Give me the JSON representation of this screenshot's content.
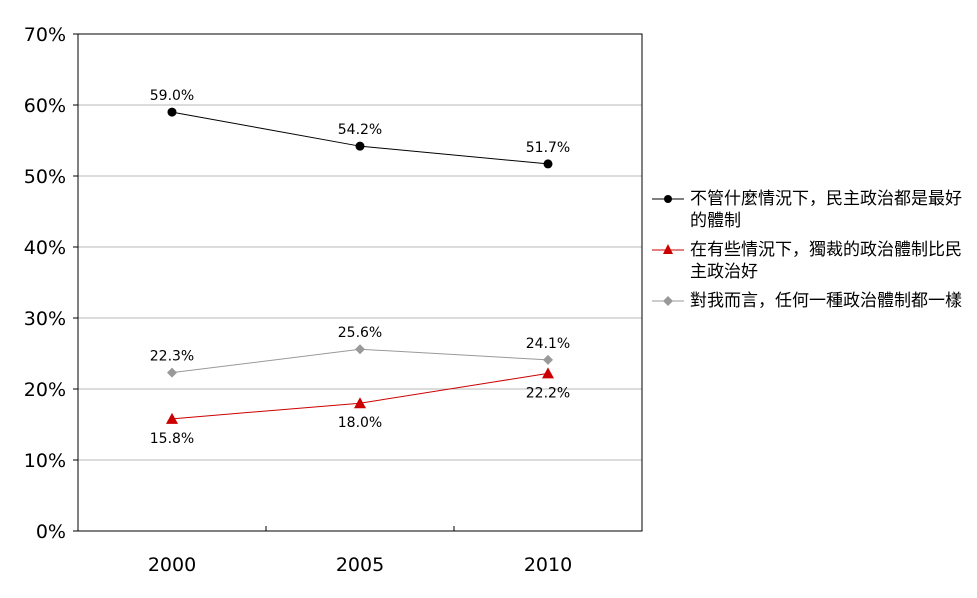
{
  "chart_data": {
    "type": "line",
    "categories": [
      "2000",
      "2005",
      "2010"
    ],
    "ylim": [
      0,
      70
    ],
    "y_ticks": [
      "0%",
      "10%",
      "20%",
      "30%",
      "40%",
      "50%",
      "60%",
      "70%"
    ],
    "grid": true,
    "legend_position": "right",
    "series": [
      {
        "name": "不管什麼情況下，民主政治都是最好的體制",
        "values": [
          59.0,
          54.2,
          51.7
        ],
        "labels": [
          "59.0%",
          "54.2%",
          "51.7%"
        ],
        "label_position": "above",
        "color": "#000000",
        "marker": "circle"
      },
      {
        "name": "在有些情況下，獨裁的政治體制比民主政治好",
        "values": [
          15.8,
          18.0,
          22.2
        ],
        "labels": [
          "15.8%",
          "18.0%",
          "22.2%"
        ],
        "label_position": "below",
        "color": "#cc0000",
        "marker": "triangle"
      },
      {
        "name": "對我而言，任何一種政治體制都一樣",
        "values": [
          22.3,
          25.6,
          24.1
        ],
        "labels": [
          "22.3%",
          "25.6%",
          "24.1%"
        ],
        "label_position": "above",
        "color": "#999999",
        "marker": "diamond"
      }
    ]
  }
}
